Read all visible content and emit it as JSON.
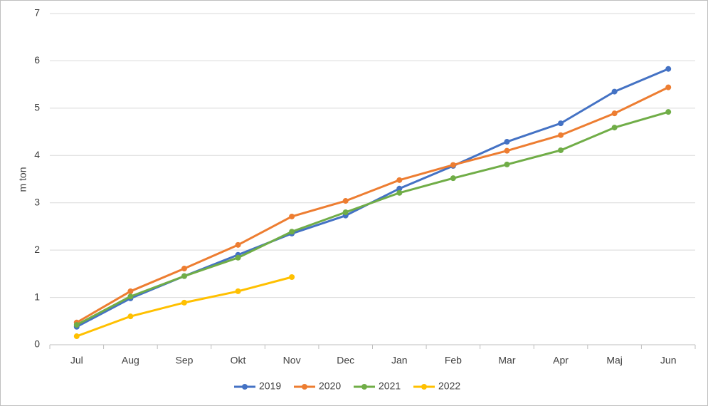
{
  "chart_data": {
    "type": "line",
    "y_label": "m ton",
    "categories": [
      "Jul",
      "Aug",
      "Sep",
      "Okt",
      "Nov",
      "Dec",
      "Jan",
      "Feb",
      "Mar",
      "Apr",
      "Maj",
      "Jun"
    ],
    "series": [
      {
        "name": "2019",
        "color": "#4472c4",
        "values": [
          0.38,
          0.98,
          1.45,
          1.9,
          2.35,
          2.73,
          3.3,
          3.78,
          4.29,
          4.68,
          5.35,
          5.83
        ]
      },
      {
        "name": "2020",
        "color": "#ed7d31",
        "values": [
          0.47,
          1.13,
          1.61,
          2.11,
          2.71,
          3.04,
          3.48,
          3.8,
          4.1,
          4.43,
          4.89,
          5.44
        ]
      },
      {
        "name": "2021",
        "color": "#70ad47",
        "values": [
          0.42,
          1.02,
          1.45,
          1.84,
          2.39,
          2.8,
          3.21,
          3.52,
          3.81,
          4.11,
          4.59,
          4.92
        ]
      },
      {
        "name": "2022",
        "color": "#ffc000",
        "values": [
          0.18,
          0.6,
          0.89,
          1.13,
          1.43,
          null,
          null,
          null,
          null,
          null,
          null,
          null
        ]
      }
    ],
    "ylim": [
      0,
      7
    ],
    "yticks": [
      0,
      1,
      2,
      3,
      4,
      5,
      6,
      7
    ],
    "grid": true,
    "legend": "bottom"
  }
}
